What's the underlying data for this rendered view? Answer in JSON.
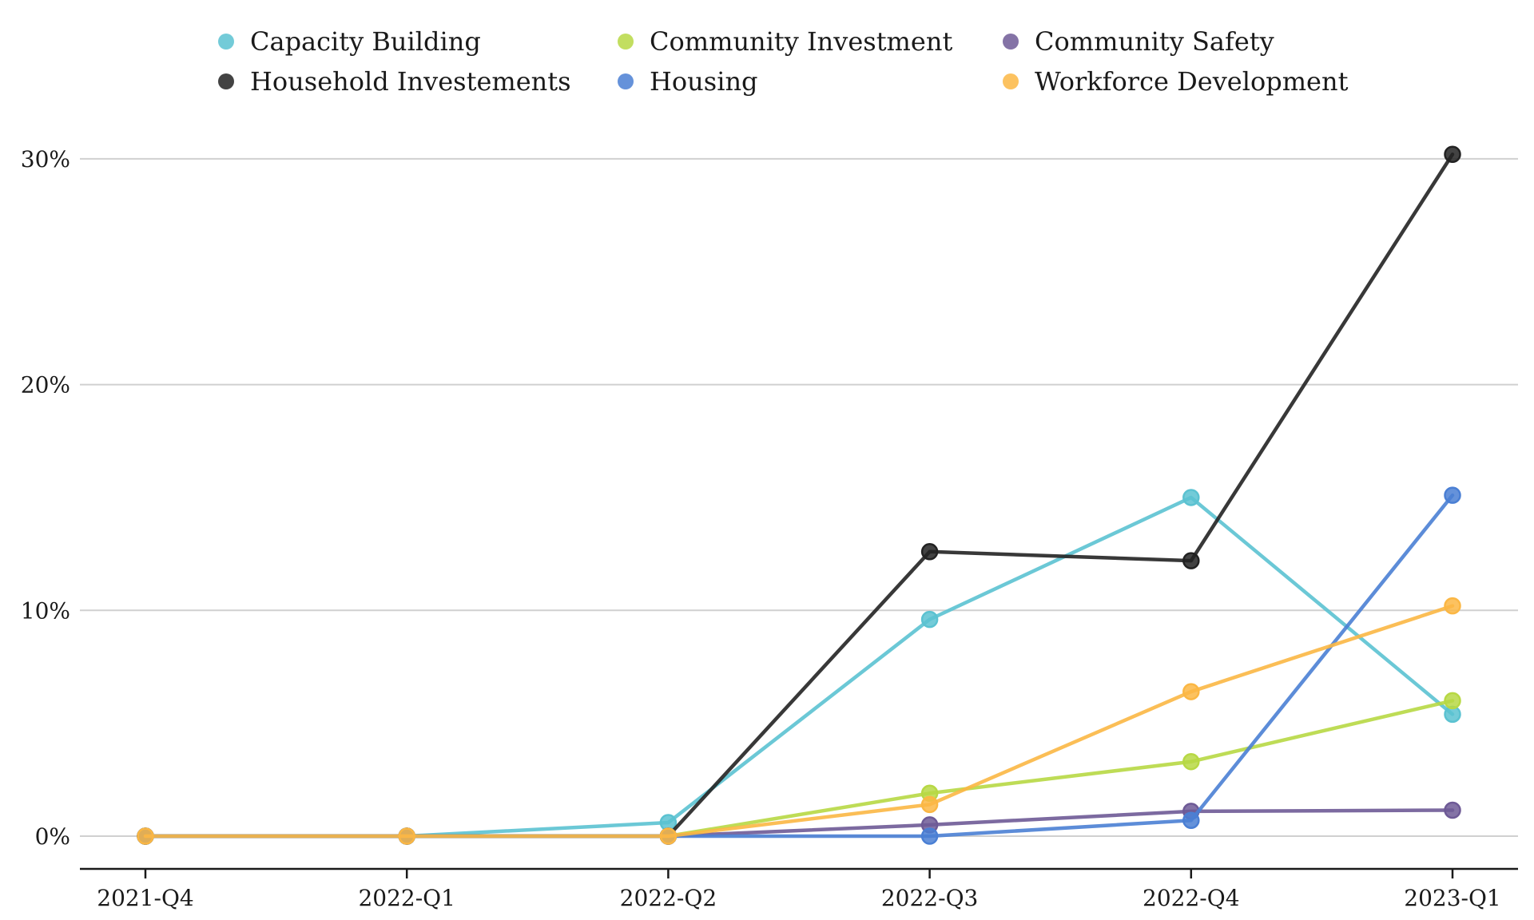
{
  "chart_data": {
    "type": "line",
    "title": "",
    "xlabel": "",
    "ylabel": "",
    "categories": [
      "2021-Q4",
      "2022-Q1",
      "2022-Q2",
      "2022-Q3",
      "2022-Q4",
      "2023-Q1"
    ],
    "y_ticks": [
      0,
      10,
      20,
      30
    ],
    "y_tick_labels": [
      "0%",
      "10%",
      "20%",
      "30%"
    ],
    "ylim": [
      -1.5,
      32
    ],
    "grid": "horizontal",
    "legend_position": "top",
    "series": [
      {
        "name": "Capacity Building",
        "color": "#5bc2d1",
        "values": [
          0,
          0,
          0.6,
          9.6,
          15.0,
          5.4
        ]
      },
      {
        "name": "Community Investment",
        "color": "#b7d844",
        "values": [
          0,
          0,
          0,
          1.9,
          3.3,
          6.0
        ]
      },
      {
        "name": "Community Safety",
        "color": "#6e5a96",
        "values": [
          0,
          0,
          0,
          0.5,
          1.1,
          1.15
        ]
      },
      {
        "name": "Household Investements",
        "color": "#222222",
        "values": [
          0,
          0,
          0,
          12.6,
          12.2,
          30.2
        ]
      },
      {
        "name": "Housing",
        "color": "#4a7fd4",
        "values": [
          0,
          0,
          0,
          0,
          0.7,
          15.1
        ]
      },
      {
        "name": "Workforce Development",
        "color": "#fbb744",
        "values": [
          0,
          0,
          0,
          1.4,
          6.4,
          10.2
        ]
      }
    ]
  }
}
